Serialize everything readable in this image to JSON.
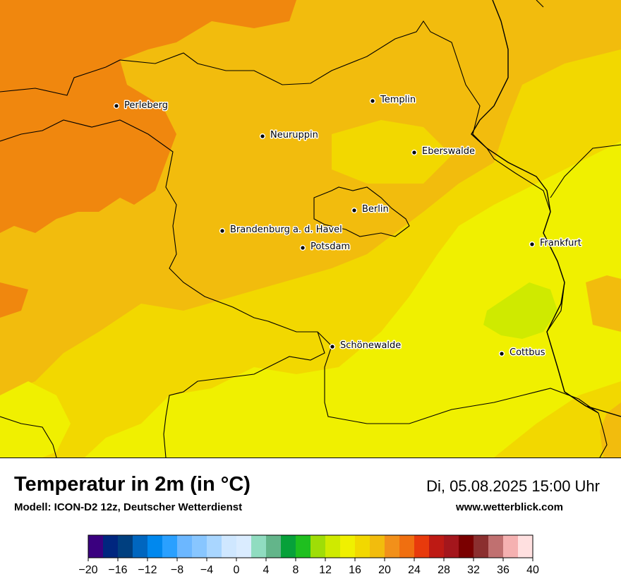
{
  "map": {
    "cities": [
      {
        "name": "Perleberg",
        "key": "perleberg"
      },
      {
        "name": "Templin",
        "key": "templin"
      },
      {
        "name": "Neuruppin",
        "key": "neuruppin"
      },
      {
        "name": "Eberswalde",
        "key": "eberswalde"
      },
      {
        "name": "Berlin",
        "key": "berlin"
      },
      {
        "name": "Brandenburg a. d. Havel",
        "key": "brandenburg"
      },
      {
        "name": "Potsdam",
        "key": "potsdam"
      },
      {
        "name": "Frankfurt",
        "key": "frankfurt"
      },
      {
        "name": "Schönewalde",
        "key": "schoenewalde"
      },
      {
        "name": "Cottbus",
        "key": "cottbus"
      }
    ]
  },
  "info": {
    "title": "Temperatur in 2m (in °C)",
    "model": "Modell: ICON-D2 12z, Deutscher Wetterdienst",
    "datetime": "Di, 05.08.2025 15:00 Uhr",
    "website": "www.wetterblick.com"
  },
  "colorbar": {
    "tick_labels": [
      "−20",
      "−16",
      "−12",
      "−8",
      "−4",
      "0",
      "4",
      "8",
      "12",
      "16",
      "20",
      "24",
      "28",
      "32",
      "36",
      "40"
    ],
    "colors": [
      "#3a007f",
      "#00267f",
      "#003f7f",
      "#0066bf",
      "#0088ee",
      "#2aa0ff",
      "#6cb7ff",
      "#88c6ff",
      "#a9d6ff",
      "#cfe7ff",
      "#daecff",
      "#90dcc0",
      "#63b58a",
      "#07a13a",
      "#1fbf1f",
      "#9fdd07",
      "#cfea00",
      "#f0f000",
      "#f2d800",
      "#f2bc0d",
      "#f2901a",
      "#f06f10",
      "#e83a0c",
      "#be1a14",
      "#a4161c",
      "#7a0000",
      "#8b2f2f",
      "#c07070",
      "#f5b1b1",
      "#ffe0e0"
    ]
  },
  "legend_colors": {
    "orange": "#f0870e",
    "amber": "#f2bc0d",
    "gold": "#f2d800",
    "yellow": "#f0f000",
    "lime": "#cfea00"
  }
}
